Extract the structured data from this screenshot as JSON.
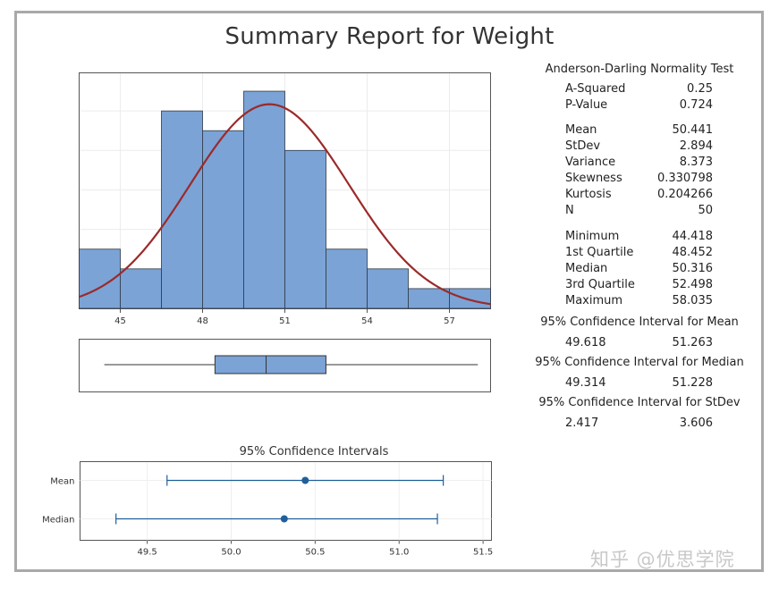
{
  "title": "Summary Report for Weight",
  "stats": {
    "ad_header": "Anderson-Darling Normality Test",
    "rows": [
      {
        "label": "A-Squared",
        "value": "0.25"
      },
      {
        "label": "P-Value",
        "value": "0.724"
      },
      {
        "label": "Mean",
        "value": "50.441"
      },
      {
        "label": "StDev",
        "value": "2.894"
      },
      {
        "label": "Variance",
        "value": "8.373"
      },
      {
        "label": "Skewness",
        "value": "0.330798"
      },
      {
        "label": "Kurtosis",
        "value": "0.204266"
      },
      {
        "label": "N",
        "value": "50"
      },
      {
        "label": "Minimum",
        "value": "44.418"
      },
      {
        "label": "1st Quartile",
        "value": "48.452"
      },
      {
        "label": "Median",
        "value": "50.316"
      },
      {
        "label": "3rd Quartile",
        "value": "52.498"
      },
      {
        "label": "Maximum",
        "value": "58.035"
      }
    ],
    "ci": [
      {
        "header": "95% Confidence Interval for Mean",
        "lower": "49.618",
        "upper": "51.263"
      },
      {
        "header": "95% Confidence Interval for Median",
        "lower": "49.314",
        "upper": "51.228"
      },
      {
        "header": "95% Confidence Interval for StDev",
        "lower": "2.417",
        "upper": "3.606"
      }
    ]
  },
  "watermark": "知乎 @优思学院",
  "chart_data": [
    {
      "type": "bar",
      "subtype": "histogram",
      "bin_edges": [
        43.5,
        45,
        46.5,
        48,
        49.5,
        51,
        52.5,
        54,
        55.5,
        57,
        58.5
      ],
      "counts": [
        3,
        2,
        10,
        9,
        11,
        8,
        3,
        2,
        1,
        1
      ],
      "x_ticks": [
        45,
        48,
        51,
        54,
        57
      ],
      "xlim": [
        43.5,
        58.5
      ],
      "ylim": [
        0,
        11.5
      ],
      "fit": {
        "type": "normal",
        "mean": 50.441,
        "stdev": 2.894,
        "color": "#9b2a2a"
      },
      "bar_color": "#7ba3d6",
      "grid": true
    },
    {
      "type": "boxplot",
      "min": 44.418,
      "q1": 48.452,
      "median": 50.316,
      "q3": 52.498,
      "max": 58.035,
      "xlim": [
        43.5,
        58.5
      ],
      "box_color": "#7ba3d6"
    },
    {
      "type": "interval",
      "title": "95% Confidence Intervals",
      "rows": [
        {
          "label": "Mean",
          "lower": 49.618,
          "estimate": 50.441,
          "upper": 51.263
        },
        {
          "label": "Median",
          "lower": 49.314,
          "estimate": 50.316,
          "upper": 51.228
        }
      ],
      "x_ticks": [
        "49.5",
        "50.0",
        "50.5",
        "51.0",
        "51.5"
      ],
      "xlim": [
        49.1,
        51.55
      ],
      "color": "#1f5f9a",
      "grid": true
    }
  ]
}
